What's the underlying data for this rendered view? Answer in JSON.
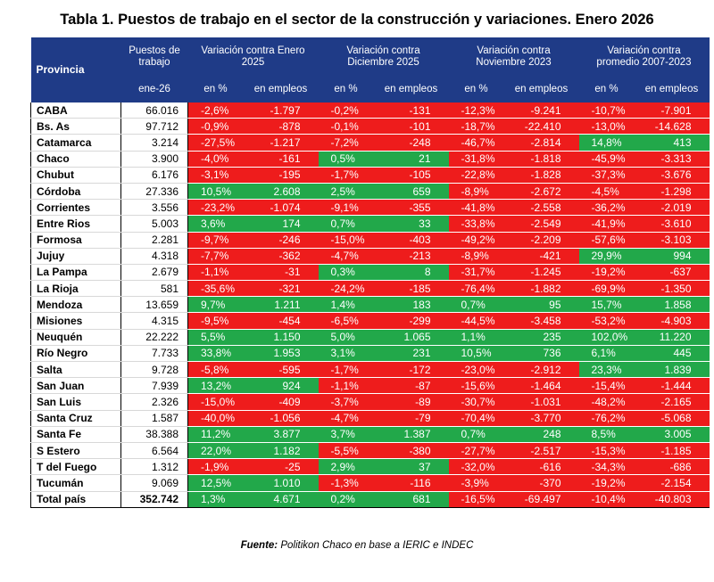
{
  "title": "Tabla 1. Puestos de trabajo en el sector de la construcción y variaciones. Enero 2026",
  "header": {
    "provincia": "Provincia",
    "puestos": "Puestos de trabajo",
    "puestos_sub": "ene-26",
    "groups": [
      "Variación contra Enero 2025",
      "Variación contra Diciembre 2025",
      "Variación contra Noviembre 2023",
      "Variación contra promedio 2007-2023"
    ],
    "pct_label": "en %",
    "emp_label": "en empleos"
  },
  "rows": [
    {
      "name": "CABA",
      "jobs": "66.016",
      "vals": [
        [
          "-2,6%",
          "-1.797",
          "n"
        ],
        [
          "-0,2%",
          "-131",
          "n"
        ],
        [
          "-12,3%",
          "-9.241",
          "n"
        ],
        [
          "-10,7%",
          "-7.901",
          "n"
        ]
      ]
    },
    {
      "name": "Bs. As",
      "jobs": "97.712",
      "vals": [
        [
          "-0,9%",
          "-878",
          "n"
        ],
        [
          "-0,1%",
          "-101",
          "n"
        ],
        [
          "-18,7%",
          "-22.410",
          "n"
        ],
        [
          "-13,0%",
          "-14.628",
          "n"
        ]
      ]
    },
    {
      "name": "Catamarca",
      "jobs": "3.214",
      "vals": [
        [
          "-27,5%",
          "-1.217",
          "n"
        ],
        [
          "-7,2%",
          "-248",
          "n"
        ],
        [
          "-46,7%",
          "-2.814",
          "n"
        ],
        [
          "14,8%",
          "413",
          "p"
        ]
      ]
    },
    {
      "name": "Chaco",
      "jobs": "3.900",
      "vals": [
        [
          "-4,0%",
          "-161",
          "n"
        ],
        [
          "0,5%",
          "21",
          "p"
        ],
        [
          "-31,8%",
          "-1.818",
          "n"
        ],
        [
          "-45,9%",
          "-3.313",
          "n"
        ]
      ]
    },
    {
      "name": "Chubut",
      "jobs": "6.176",
      "vals": [
        [
          "-3,1%",
          "-195",
          "n"
        ],
        [
          "-1,7%",
          "-105",
          "n"
        ],
        [
          "-22,8%",
          "-1.828",
          "n"
        ],
        [
          "-37,3%",
          "-3.676",
          "n"
        ]
      ]
    },
    {
      "name": "Córdoba",
      "jobs": "27.336",
      "vals": [
        [
          "10,5%",
          "2.608",
          "p"
        ],
        [
          "2,5%",
          "659",
          "p"
        ],
        [
          "-8,9%",
          "-2.672",
          "n"
        ],
        [
          "-4,5%",
          "-1.298",
          "n"
        ]
      ]
    },
    {
      "name": "Corrientes",
      "jobs": "3.556",
      "vals": [
        [
          "-23,2%",
          "-1.074",
          "n"
        ],
        [
          "-9,1%",
          "-355",
          "n"
        ],
        [
          "-41,8%",
          "-2.558",
          "n"
        ],
        [
          "-36,2%",
          "-2.019",
          "n"
        ]
      ]
    },
    {
      "name": "Entre Rios",
      "jobs": "5.003",
      "vals": [
        [
          "3,6%",
          "174",
          "p"
        ],
        [
          "0,7%",
          "33",
          "p"
        ],
        [
          "-33,8%",
          "-2.549",
          "n"
        ],
        [
          "-41,9%",
          "-3.610",
          "n"
        ]
      ]
    },
    {
      "name": "Formosa",
      "jobs": "2.281",
      "vals": [
        [
          "-9,7%",
          "-246",
          "n"
        ],
        [
          "-15,0%",
          "-403",
          "n"
        ],
        [
          "-49,2%",
          "-2.209",
          "n"
        ],
        [
          "-57,6%",
          "-3.103",
          "n"
        ]
      ]
    },
    {
      "name": "Jujuy",
      "jobs": "4.318",
      "vals": [
        [
          "-7,7%",
          "-362",
          "n"
        ],
        [
          "-4,7%",
          "-213",
          "n"
        ],
        [
          "-8,9%",
          "-421",
          "n"
        ],
        [
          "29,9%",
          "994",
          "p"
        ]
      ]
    },
    {
      "name": "La Pampa",
      "jobs": "2.679",
      "vals": [
        [
          "-1,1%",
          "-31",
          "n"
        ],
        [
          "0,3%",
          "8",
          "p"
        ],
        [
          "-31,7%",
          "-1.245",
          "n"
        ],
        [
          "-19,2%",
          "-637",
          "n"
        ]
      ]
    },
    {
      "name": "La Rioja",
      "jobs": "581",
      "vals": [
        [
          "-35,6%",
          "-321",
          "n"
        ],
        [
          "-24,2%",
          "-185",
          "n"
        ],
        [
          "-76,4%",
          "-1.882",
          "n"
        ],
        [
          "-69,9%",
          "-1.350",
          "n"
        ]
      ]
    },
    {
      "name": "Mendoza",
      "jobs": "13.659",
      "vals": [
        [
          "9,7%",
          "1.211",
          "p"
        ],
        [
          "1,4%",
          "183",
          "p"
        ],
        [
          "0,7%",
          "95",
          "p"
        ],
        [
          "15,7%",
          "1.858",
          "p"
        ]
      ]
    },
    {
      "name": "Misiones",
      "jobs": "4.315",
      "vals": [
        [
          "-9,5%",
          "-454",
          "n"
        ],
        [
          "-6,5%",
          "-299",
          "n"
        ],
        [
          "-44,5%",
          "-3.458",
          "n"
        ],
        [
          "-53,2%",
          "-4.903",
          "n"
        ]
      ]
    },
    {
      "name": "Neuquén",
      "jobs": "22.222",
      "vals": [
        [
          "5,5%",
          "1.150",
          "p"
        ],
        [
          "5,0%",
          "1.065",
          "p"
        ],
        [
          "1,1%",
          "235",
          "p"
        ],
        [
          "102,0%",
          "11.220",
          "p"
        ]
      ]
    },
    {
      "name": "Río Negro",
      "jobs": "7.733",
      "vals": [
        [
          "33,8%",
          "1.953",
          "p"
        ],
        [
          "3,1%",
          "231",
          "p"
        ],
        [
          "10,5%",
          "736",
          "p"
        ],
        [
          "6,1%",
          "445",
          "p"
        ]
      ]
    },
    {
      "name": "Salta",
      "jobs": "9.728",
      "vals": [
        [
          "-5,8%",
          "-595",
          "n"
        ],
        [
          "-1,7%",
          "-172",
          "n"
        ],
        [
          "-23,0%",
          "-2.912",
          "n"
        ],
        [
          "23,3%",
          "1.839",
          "p"
        ]
      ]
    },
    {
      "name": "San Juan",
      "jobs": "7.939",
      "vals": [
        [
          "13,2%",
          "924",
          "p"
        ],
        [
          "-1,1%",
          "-87",
          "n"
        ],
        [
          "-15,6%",
          "-1.464",
          "n"
        ],
        [
          "-15,4%",
          "-1.444",
          "n"
        ]
      ]
    },
    {
      "name": "San Luis",
      "jobs": "2.326",
      "vals": [
        [
          "-15,0%",
          "-409",
          "n"
        ],
        [
          "-3,7%",
          "-89",
          "n"
        ],
        [
          "-30,7%",
          "-1.031",
          "n"
        ],
        [
          "-48,2%",
          "-2.165",
          "n"
        ]
      ]
    },
    {
      "name": "Santa Cruz",
      "jobs": "1.587",
      "vals": [
        [
          "-40,0%",
          "-1.056",
          "n"
        ],
        [
          "-4,7%",
          "-79",
          "n"
        ],
        [
          "-70,4%",
          "-3.770",
          "n"
        ],
        [
          "-76,2%",
          "-5.068",
          "n"
        ]
      ]
    },
    {
      "name": "Santa Fe",
      "jobs": "38.388",
      "vals": [
        [
          "11,2%",
          "3.877",
          "p"
        ],
        [
          "3,7%",
          "1.387",
          "p"
        ],
        [
          "0,7%",
          "248",
          "p"
        ],
        [
          "8,5%",
          "3.005",
          "p"
        ]
      ]
    },
    {
      "name": "S Estero",
      "jobs": "6.564",
      "vals": [
        [
          "22,0%",
          "1.182",
          "p"
        ],
        [
          "-5,5%",
          "-380",
          "n"
        ],
        [
          "-27,7%",
          "-2.517",
          "n"
        ],
        [
          "-15,3%",
          "-1.185",
          "n"
        ]
      ]
    },
    {
      "name": "T del Fuego",
      "jobs": "1.312",
      "vals": [
        [
          "-1,9%",
          "-25",
          "n"
        ],
        [
          "2,9%",
          "37",
          "p"
        ],
        [
          "-32,0%",
          "-616",
          "n"
        ],
        [
          "-34,3%",
          "-686",
          "n"
        ]
      ]
    },
    {
      "name": "Tucumán",
      "jobs": "9.069",
      "vals": [
        [
          "12,5%",
          "1.010",
          "p"
        ],
        [
          "-1,3%",
          "-116",
          "n"
        ],
        [
          "-3,9%",
          "-370",
          "n"
        ],
        [
          "-19,2%",
          "-2.154",
          "n"
        ]
      ]
    }
  ],
  "total": {
    "name": "Total país",
    "jobs": "352.742",
    "vals": [
      [
        "1,3%",
        "4.671",
        "p"
      ],
      [
        "0,2%",
        "681",
        "p"
      ],
      [
        "-16,5%",
        "-69.497",
        "n"
      ],
      [
        "-10,4%",
        "-40.803",
        "n"
      ]
    ]
  },
  "source_label": "Fuente:",
  "source_text": " Politikon Chaco en base a IERIC e INDEC",
  "colors": {
    "header": "#1f3b87",
    "negative": "#ee1c1c",
    "positive": "#22a84a"
  }
}
